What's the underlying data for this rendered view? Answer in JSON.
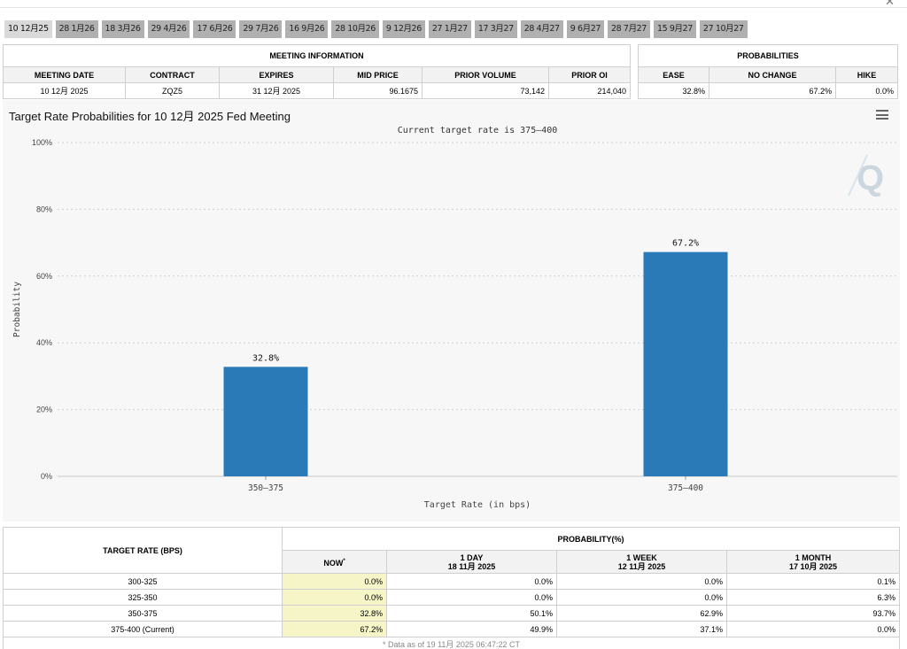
{
  "close_label": "✕",
  "tabs": [
    "10 12月25",
    "28 1月26",
    "18 3月26",
    "29 4月26",
    "17 6月26",
    "29 7月26",
    "16 9月26",
    "28 10月26",
    "9 12月26",
    "27 1月27",
    "17 3月27",
    "28 4月27",
    "9 6月27",
    "28 7月27",
    "15 9月27",
    "27 10月27"
  ],
  "meeting_info": {
    "group_label": "MEETING INFORMATION",
    "headers": [
      "MEETING DATE",
      "CONTRACT",
      "EXPIRES",
      "MID PRICE",
      "PRIOR VOLUME",
      "PRIOR OI"
    ],
    "row": [
      "10 12月 2025",
      "ZQZ5",
      "31 12月 2025",
      "96.1675",
      "73,142",
      "214,040"
    ]
  },
  "probabilities": {
    "group_label": "PROBABILITIES",
    "headers": [
      "EASE",
      "NO CHANGE",
      "HIKE"
    ],
    "row": [
      "32.8%",
      "67.2%",
      "0.0%"
    ]
  },
  "chart_title": "Target Rate Probabilities for 10 12月 2025 Fed Meeting",
  "chart_data": {
    "type": "bar",
    "title": "Target Rate Probabilities for 10 12月 2025 Fed Meeting",
    "subtitle": "Current target rate is 375–400",
    "xlabel": "Target Rate (in bps)",
    "ylabel": "Probability",
    "categories": [
      "350–375",
      "375–400"
    ],
    "values": [
      32.8,
      67.2
    ],
    "value_labels": [
      "32.8%",
      "67.2%"
    ],
    "ylim": [
      0,
      100
    ],
    "yticks": [
      0,
      20,
      40,
      60,
      80,
      100
    ],
    "ytick_labels": [
      "0%",
      "20%",
      "40%",
      "60%",
      "80%",
      "100%"
    ],
    "grid": true,
    "bar_color": "#2a7ab8"
  },
  "rate_table": {
    "col1_header": "TARGET RATE (BPS)",
    "group_label": "PROBABILITY(%)",
    "sub_headers": [
      {
        "line1": "NOW",
        "sup": "*",
        "line2": ""
      },
      {
        "line1": "1 DAY",
        "sup": "",
        "line2": "18 11月 2025"
      },
      {
        "line1": "1 WEEK",
        "sup": "",
        "line2": "12 11月 2025"
      },
      {
        "line1": "1 MONTH",
        "sup": "",
        "line2": "17 10月 2025"
      }
    ],
    "rows": [
      {
        "rate": "300-325",
        "values": [
          "0.0%",
          "0.0%",
          "0.0%",
          "0.1%"
        ]
      },
      {
        "rate": "325-350",
        "values": [
          "0.0%",
          "0.0%",
          "0.0%",
          "6.3%"
        ]
      },
      {
        "rate": "350-375",
        "values": [
          "32.8%",
          "50.1%",
          "62.9%",
          "93.7%"
        ]
      },
      {
        "rate": "375-400 (Current)",
        "values": [
          "67.2%",
          "49.9%",
          "37.1%",
          "0.0%"
        ]
      }
    ],
    "footnote": "* Data as of 19 11月 2025 06:47:22 CT"
  },
  "colors": {
    "accent_bar": "#2a7ab8",
    "now_highlight": "#f5f5c8",
    "tab_bg": "#b0b0b0"
  }
}
